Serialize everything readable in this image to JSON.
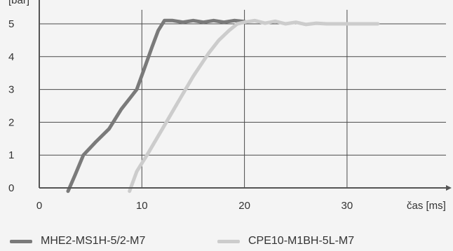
{
  "chart_data": {
    "type": "line",
    "ylabel": "[bar]",
    "xlabel": "čas [ms]",
    "xlim": [
      0,
      38
    ],
    "ylim": [
      0,
      5.3
    ],
    "x_ticks": [
      0,
      10,
      20,
      30
    ],
    "y_ticks": [
      0,
      1,
      2,
      3,
      4,
      5
    ],
    "grid": true,
    "legend_position": "bottom",
    "colors": {
      "series1": "#7a7a7a",
      "series2": "#cccccc",
      "axis": "#555555",
      "grid": "#4a4a4a"
    },
    "series": [
      {
        "name": "MHE2-MS1H-5/2-M7",
        "x": [
          2.8,
          3.5,
          4.3,
          5.5,
          6.8,
          8.0,
          9.0,
          9.5,
          10.2,
          11.0,
          11.6,
          12.2,
          13.0,
          14.0,
          15.0,
          16.0,
          17.0,
          18.0,
          19.0,
          20.0
        ],
        "y": [
          -0.1,
          0.4,
          1.0,
          1.4,
          1.8,
          2.4,
          2.8,
          3.0,
          3.6,
          4.3,
          4.8,
          5.1,
          5.1,
          5.05,
          5.1,
          5.05,
          5.1,
          5.05,
          5.1,
          5.07
        ]
      },
      {
        "name": "CPE10-M1BH-5L-M7",
        "x": [
          8.8,
          9.5,
          10.5,
          12.0,
          13.5,
          15.0,
          16.5,
          17.5,
          18.5,
          19.3,
          20.0,
          21.0,
          22.0,
          23.0,
          24.0,
          25.0,
          26.0,
          27.0,
          28.0,
          30.0,
          33.0
        ],
        "y": [
          -0.1,
          0.5,
          1.0,
          1.8,
          2.6,
          3.4,
          4.1,
          4.5,
          4.8,
          5.0,
          5.05,
          5.1,
          5.02,
          5.08,
          5.0,
          5.05,
          4.98,
          5.02,
          5.0,
          5.0,
          5.0
        ]
      }
    ]
  },
  "legend": [
    {
      "label": "MHE2-MS1H-5/2-M7",
      "color": "#7a7a7a"
    },
    {
      "label": "CPE10-M1BH-5L-M7",
      "color": "#cccccc"
    }
  ]
}
